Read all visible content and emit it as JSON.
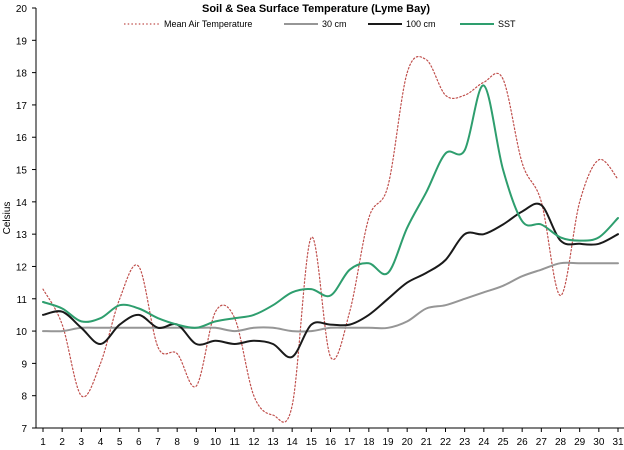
{
  "chart_data": {
    "type": "line",
    "title": "Soil & Sea Surface Temperature (Lyme Bay)",
    "xlabel": "",
    "ylabel": "Celsius",
    "ylim": [
      7,
      20
    ],
    "yticks": [
      7,
      8,
      9,
      10,
      11,
      12,
      13,
      14,
      15,
      16,
      17,
      18,
      19,
      20
    ],
    "xlim": [
      1,
      31
    ],
    "x": [
      1,
      2,
      3,
      4,
      5,
      6,
      7,
      8,
      9,
      10,
      11,
      12,
      13,
      14,
      15,
      16,
      17,
      18,
      19,
      20,
      21,
      22,
      23,
      24,
      25,
      26,
      27,
      28,
      29,
      30,
      31
    ],
    "grid": false,
    "legend_position": "top",
    "series": [
      {
        "name": "Mean Air Temperature",
        "color": "#c0504d",
        "style": "dotted",
        "values": [
          11.3,
          10.2,
          8.0,
          9.0,
          11.0,
          12.0,
          9.5,
          9.3,
          8.3,
          10.6,
          10.4,
          8.0,
          7.4,
          7.7,
          12.9,
          9.2,
          10.6,
          13.5,
          14.5,
          18.0,
          18.4,
          17.3,
          17.3,
          17.7,
          17.8,
          15.2,
          14.0,
          11.1,
          14.0,
          15.3,
          14.7
        ]
      },
      {
        "name": "30 cm",
        "color": "#969696",
        "style": "solid",
        "values": [
          10.0,
          10.0,
          10.1,
          10.1,
          10.1,
          10.1,
          10.1,
          10.1,
          10.1,
          10.1,
          10.0,
          10.1,
          10.1,
          10.0,
          10.0,
          10.1,
          10.1,
          10.1,
          10.1,
          10.3,
          10.7,
          10.8,
          11.0,
          11.2,
          11.4,
          11.7,
          11.9,
          12.1,
          12.1,
          12.1,
          12.1
        ]
      },
      {
        "name": "100 cm",
        "color": "#1a1a1a",
        "style": "solid",
        "values": [
          10.5,
          10.6,
          10.1,
          9.6,
          10.2,
          10.5,
          10.1,
          10.2,
          9.6,
          9.7,
          9.6,
          9.7,
          9.6,
          9.2,
          10.2,
          10.2,
          10.2,
          10.5,
          11.0,
          11.5,
          11.8,
          12.2,
          13.0,
          13.0,
          13.3,
          13.7,
          13.9,
          12.8,
          12.7,
          12.7,
          13.0
        ]
      },
      {
        "name": "SST",
        "color": "#2e9e6e",
        "style": "solid",
        "values": [
          10.9,
          10.7,
          10.3,
          10.4,
          10.8,
          10.7,
          10.4,
          10.2,
          10.1,
          10.3,
          10.4,
          10.5,
          10.8,
          11.2,
          11.3,
          11.1,
          11.9,
          12.1,
          11.8,
          13.2,
          14.3,
          15.5,
          15.6,
          17.6,
          15.0,
          13.4,
          13.3,
          12.9,
          12.8,
          12.9,
          13.5
        ]
      }
    ]
  }
}
